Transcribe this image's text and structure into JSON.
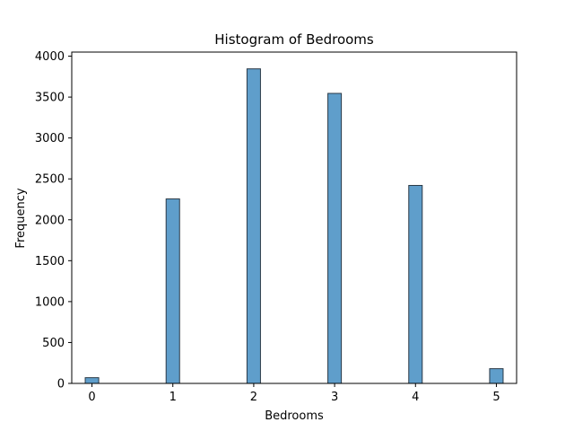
{
  "chart_data": {
    "type": "bar",
    "title": "Histogram of Bedrooms",
    "xlabel": "Bedrooms",
    "ylabel": "Frequency",
    "bin_width": 0.1667,
    "xlim": [
      -0.25,
      5.25
    ],
    "ylim": [
      0,
      4050
    ],
    "xticks": [
      0,
      1,
      2,
      3,
      4,
      5
    ],
    "yticks": [
      0,
      500,
      1000,
      1500,
      2000,
      2500,
      3000,
      3500,
      4000
    ],
    "bins": [
      {
        "x": 0,
        "value": 70
      },
      {
        "x": 1,
        "value": 2255
      },
      {
        "x": 2,
        "value": 3845
      },
      {
        "x": 3,
        "value": 3545
      },
      {
        "x": 4,
        "value": 2420
      },
      {
        "x": 5,
        "value": 180
      }
    ],
    "grid": false,
    "colors": {
      "bar_fill": "#5f9ecb",
      "bar_edge": "#2b3a47",
      "axis": "#000000"
    }
  }
}
